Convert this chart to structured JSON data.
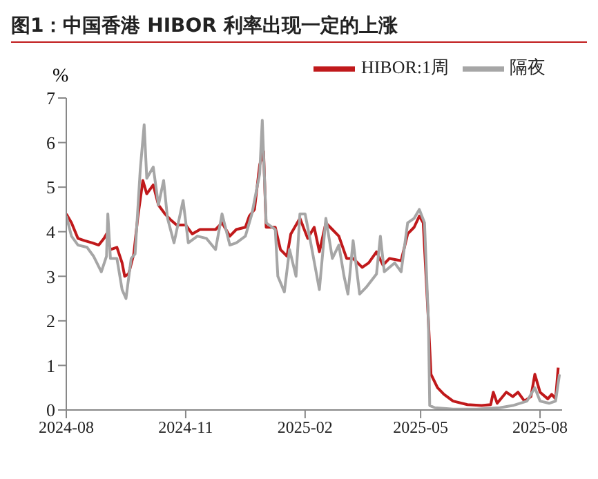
{
  "chart_data": {
    "type": "line",
    "title": "图1：中国香港 HIBOR 利率出现一定的上涨",
    "ylabel": "%",
    "xlim": [
      "2024-08-01",
      "2025-08-18"
    ],
    "xticks": [
      "2024-08",
      "2024-11",
      "2025-02",
      "2025-05",
      "2025-08"
    ],
    "ylim": [
      0,
      7
    ],
    "yticks": [
      0,
      1,
      2,
      3,
      4,
      5,
      6,
      7
    ],
    "legend": "top right",
    "marker": "none",
    "line_style": "solid",
    "series": [
      {
        "name": "HIBOR:1周",
        "color": "#c0191b",
        "x": [
          "2024-08-01",
          "2024-08-05",
          "2024-08-10",
          "2024-08-15",
          "2024-08-21",
          "2024-08-26",
          "2024-08-30",
          "2024-09-01",
          "2024-09-04",
          "2024-09-09",
          "2024-09-13",
          "2024-09-15",
          "2024-09-18",
          "2024-09-22",
          "2024-09-25",
          "2024-09-29",
          "2024-10-02",
          "2024-10-07",
          "2024-10-11",
          "2024-10-16",
          "2024-10-21",
          "2024-10-25",
          "2024-11-01",
          "2024-11-06",
          "2024-11-12",
          "2024-11-17",
          "2024-11-24",
          "2024-11-29",
          "2024-12-05",
          "2024-12-10",
          "2024-12-17",
          "2024-12-20",
          "2024-12-24",
          "2024-12-28",
          "2024-12-31",
          "2025-01-02",
          "2025-01-09",
          "2025-01-13",
          "2025-01-18",
          "2025-01-21",
          "2025-01-28",
          "2025-02-03",
          "2025-02-08",
          "2025-02-12",
          "2025-02-17",
          "2025-02-22",
          "2025-02-27",
          "2025-03-05",
          "2025-03-10",
          "2025-03-17",
          "2025-03-22",
          "2025-03-28",
          "2025-04-02",
          "2025-04-07",
          "2025-04-16",
          "2025-04-21",
          "2025-04-26",
          "2025-04-30",
          "2025-05-03",
          "2025-05-07",
          "2025-05-09",
          "2025-05-14",
          "2025-05-19",
          "2025-05-26",
          "2025-06-06",
          "2025-06-17",
          "2025-06-24",
          "2025-06-26",
          "2025-06-29",
          "2025-07-06",
          "2025-07-11",
          "2025-07-15",
          "2025-07-20",
          "2025-07-25",
          "2025-07-28",
          "2025-08-01",
          "2025-08-07",
          "2025-08-10",
          "2025-08-13",
          "2025-08-15"
        ],
        "values": [
          4.4,
          4.2,
          3.85,
          3.8,
          3.75,
          3.7,
          3.85,
          3.95,
          3.6,
          3.65,
          3.3,
          3.0,
          3.05,
          3.5,
          4.3,
          5.15,
          4.85,
          5.05,
          4.6,
          4.4,
          4.25,
          4.15,
          4.15,
          3.95,
          4.05,
          4.05,
          4.05,
          4.2,
          3.9,
          4.05,
          4.1,
          4.35,
          4.5,
          5.5,
          5.8,
          4.1,
          4.1,
          3.6,
          3.45,
          3.95,
          4.3,
          3.85,
          4.1,
          3.55,
          4.2,
          4.05,
          3.9,
          3.4,
          3.4,
          3.2,
          3.3,
          3.55,
          3.25,
          3.4,
          3.35,
          3.95,
          4.1,
          4.35,
          4.2,
          2.0,
          0.8,
          0.5,
          0.35,
          0.2,
          0.12,
          0.1,
          0.12,
          0.4,
          0.15,
          0.4,
          0.3,
          0.4,
          0.2,
          0.3,
          0.8,
          0.4,
          0.25,
          0.35,
          0.25,
          0.95
        ]
      },
      {
        "name": "隔夜",
        "color": "#a6a6a6",
        "x": [
          "2024-08-01",
          "2024-08-05",
          "2024-08-10",
          "2024-08-17",
          "2024-08-22",
          "2024-08-28",
          "2024-09-01",
          "2024-09-02",
          "2024-09-04",
          "2024-09-09",
          "2024-09-13",
          "2024-09-16",
          "2024-09-20",
          "2024-09-23",
          "2024-09-27",
          "2024-09-30",
          "2024-10-02",
          "2024-10-07",
          "2024-10-11",
          "2024-10-15",
          "2024-10-18",
          "2024-10-23",
          "2024-10-30",
          "2024-11-03",
          "2024-11-10",
          "2024-11-17",
          "2024-11-24",
          "2024-11-29",
          "2024-12-05",
          "2024-12-10",
          "2024-12-17",
          "2024-12-22",
          "2024-12-28",
          "2024-12-30",
          "2025-01-02",
          "2025-01-09",
          "2025-01-11",
          "2025-01-16",
          "2025-01-20",
          "2025-01-25",
          "2025-01-28",
          "2025-02-01",
          "2025-02-05",
          "2025-02-12",
          "2025-02-17",
          "2025-02-22",
          "2025-02-27",
          "2025-03-03",
          "2025-03-06",
          "2025-03-10",
          "2025-03-15",
          "2025-03-20",
          "2025-03-28",
          "2025-03-31",
          "2025-04-03",
          "2025-04-11",
          "2025-04-16",
          "2025-04-21",
          "2025-04-26",
          "2025-04-30",
          "2025-05-04",
          "2025-05-07",
          "2025-05-08",
          "2025-05-12",
          "2025-05-26",
          "2025-06-13",
          "2025-07-01",
          "2025-07-11",
          "2025-07-22",
          "2025-07-28",
          "2025-08-01",
          "2025-08-08",
          "2025-08-13",
          "2025-08-16"
        ],
        "values": [
          4.35,
          3.9,
          3.7,
          3.65,
          3.45,
          3.1,
          3.45,
          4.4,
          3.4,
          3.4,
          2.7,
          2.5,
          3.4,
          3.5,
          5.4,
          6.4,
          5.2,
          5.45,
          4.6,
          5.15,
          4.3,
          3.75,
          4.7,
          3.75,
          3.9,
          3.85,
          3.6,
          4.4,
          3.7,
          3.75,
          3.9,
          4.4,
          5.3,
          6.5,
          4.2,
          4.05,
          3.0,
          2.65,
          3.6,
          3.0,
          4.4,
          4.4,
          3.8,
          2.7,
          4.3,
          3.4,
          3.7,
          3.0,
          2.6,
          3.8,
          2.6,
          2.75,
          3.05,
          3.9,
          3.1,
          3.3,
          3.1,
          4.2,
          4.3,
          4.5,
          4.2,
          2.0,
          0.1,
          0.05,
          0.02,
          0.02,
          0.05,
          0.1,
          0.2,
          0.5,
          0.2,
          0.15,
          0.2,
          0.8
        ]
      }
    ]
  }
}
